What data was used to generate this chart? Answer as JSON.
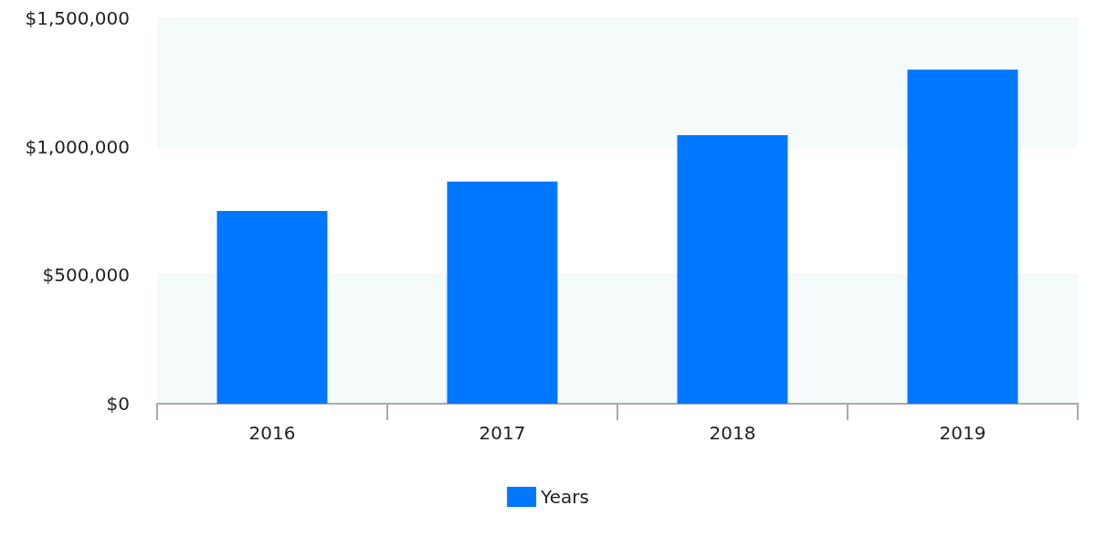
{
  "chart_data": {
    "type": "bar",
    "categories": [
      "2016",
      "2017",
      "2018",
      "2019"
    ],
    "series": [
      {
        "name": "Years",
        "color": "#0077ff",
        "values": [
          750000,
          865000,
          1045000,
          1300000
        ]
      }
    ],
    "ylim": [
      0,
      1500000
    ],
    "yticks": [
      {
        "value": 0,
        "label": "$0"
      },
      {
        "value": 500000,
        "label": "$500,000"
      },
      {
        "value": 1000000,
        "label": "$1,000,000"
      },
      {
        "value": 1500000,
        "label": "$1,500,000"
      }
    ],
    "grid": "y",
    "legend": "bottom"
  }
}
